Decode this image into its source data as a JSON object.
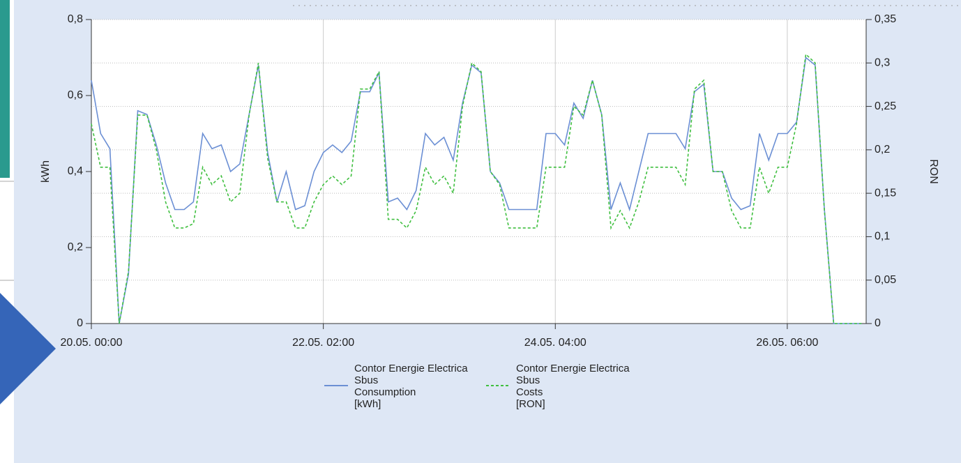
{
  "chart_data": {
    "type": "line",
    "x": [
      0,
      2,
      4,
      6,
      8,
      10,
      12,
      14,
      16,
      18,
      20,
      22,
      24,
      26,
      28,
      30,
      32,
      34,
      36,
      38,
      40,
      42,
      44,
      46,
      48,
      50,
      52,
      54,
      56,
      58,
      60,
      62,
      64,
      66,
      68,
      70,
      72,
      74,
      76,
      78,
      80,
      82,
      84,
      86,
      88,
      90,
      92,
      94,
      96,
      98,
      100,
      102,
      104,
      106,
      108,
      110,
      112,
      114,
      116,
      118,
      120,
      122,
      124,
      126,
      128,
      130,
      132,
      134,
      136,
      138,
      140,
      142,
      144,
      146,
      148,
      150,
      152,
      154,
      156,
      158,
      160,
      162,
      164,
      166
    ],
    "xlim": [
      0,
      167
    ],
    "xticks": [
      {
        "value": 0,
        "label": "20.05. 00:00"
      },
      {
        "value": 50,
        "label": "22.05. 02:00"
      },
      {
        "value": 100,
        "label": "24.05. 04:00"
      },
      {
        "value": 150,
        "label": "26.05. 06:00"
      }
    ],
    "ylabel": "kWh",
    "y2label": "RON",
    "ylim": [
      0,
      0.8
    ],
    "yticks": [
      0,
      {
        "value": 0.2,
        "label": "0,2"
      },
      {
        "value": 0.4,
        "label": "0,4"
      },
      {
        "value": 0.6,
        "label": "0,6"
      },
      {
        "value": 0.8,
        "label": "0,8"
      }
    ],
    "y2lim": [
      0,
      0.35
    ],
    "y2ticks": [
      0,
      {
        "value": 0.05,
        "label": "0,05"
      },
      {
        "value": 0.1,
        "label": "0,1"
      },
      {
        "value": 0.15,
        "label": "0,15"
      },
      {
        "value": 0.2,
        "label": "0,2"
      },
      {
        "value": 0.25,
        "label": "0,25"
      },
      {
        "value": 0.3,
        "label": "0,3"
      },
      {
        "value": 0.35,
        "label": "0,35"
      }
    ],
    "grid": true,
    "series": [
      {
        "name": "Contor Energie Electrica\nSbus\nConsumption\n[kWh]",
        "color": "#6b8fd4",
        "dash": false,
        "axis": "y",
        "values": [
          0.64,
          0.5,
          0.46,
          0,
          0.13,
          0.56,
          0.55,
          0.47,
          0.37,
          0.3,
          0.3,
          0.32,
          0.5,
          0.46,
          0.47,
          0.4,
          0.42,
          0.55,
          0.68,
          0.45,
          0.32,
          0.4,
          0.3,
          0.31,
          0.4,
          0.45,
          0.47,
          0.45,
          0.48,
          0.61,
          0.61,
          0.66,
          0.32,
          0.33,
          0.3,
          0.35,
          0.5,
          0.47,
          0.49,
          0.43,
          0.58,
          0.68,
          0.66,
          0.4,
          0.37,
          0.3,
          0.3,
          0.3,
          0.3,
          0.5,
          0.5,
          0.47,
          0.58,
          0.54,
          0.64,
          0.55,
          0.3,
          0.37,
          0.3,
          0.4,
          0.5,
          0.5,
          0.5,
          0.5,
          0.46,
          0.61,
          0.63,
          0.4,
          0.4,
          0.33,
          0.3,
          0.31,
          0.5,
          0.43,
          0.5,
          0.5,
          0.53,
          0.7,
          0.68,
          0.3,
          0,
          0,
          0,
          0
        ]
      },
      {
        "name": "Contor Energie Electrica\nSbus\nCosts\n[RON]",
        "color": "#3fbf3f",
        "dash": true,
        "axis": "y2",
        "values": [
          0.23,
          0.18,
          0.18,
          0,
          0.06,
          0.24,
          0.24,
          0.2,
          0.14,
          0.11,
          0.11,
          0.115,
          0.18,
          0.16,
          0.17,
          0.14,
          0.15,
          0.24,
          0.3,
          0.19,
          0.14,
          0.14,
          0.11,
          0.11,
          0.14,
          0.16,
          0.17,
          0.16,
          0.17,
          0.27,
          0.27,
          0.29,
          0.12,
          0.12,
          0.11,
          0.13,
          0.18,
          0.16,
          0.17,
          0.15,
          0.25,
          0.3,
          0.29,
          0.175,
          0.16,
          0.11,
          0.11,
          0.11,
          0.11,
          0.18,
          0.18,
          0.18,
          0.25,
          0.24,
          0.28,
          0.24,
          0.11,
          0.13,
          0.11,
          0.14,
          0.18,
          0.18,
          0.18,
          0.18,
          0.16,
          0.27,
          0.28,
          0.175,
          0.175,
          0.13,
          0.11,
          0.11,
          0.18,
          0.15,
          0.18,
          0.18,
          0.23,
          0.31,
          0.3,
          0.13,
          0,
          0,
          0,
          0
        ]
      }
    ]
  }
}
